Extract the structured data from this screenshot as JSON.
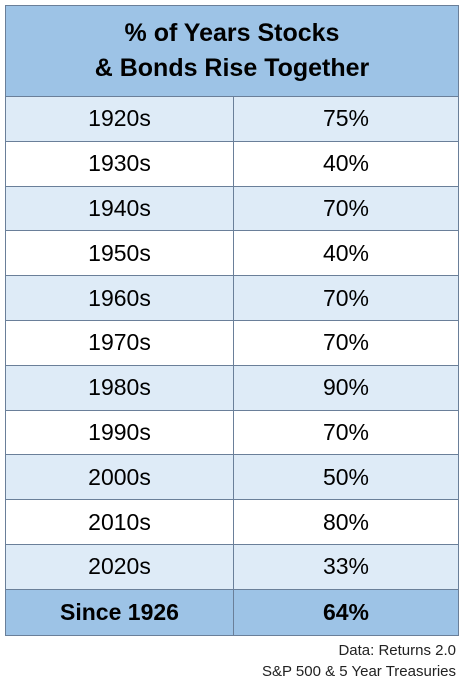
{
  "chart_data": {
    "type": "table",
    "title_lines": [
      "% of Years Stocks",
      "& Bonds Rise Together"
    ],
    "rows": [
      {
        "decade": "1920s",
        "value": "75%"
      },
      {
        "decade": "1930s",
        "value": "40%"
      },
      {
        "decade": "1940s",
        "value": "70%"
      },
      {
        "decade": "1950s",
        "value": "40%"
      },
      {
        "decade": "1960s",
        "value": "70%"
      },
      {
        "decade": "1970s",
        "value": "70%"
      },
      {
        "decade": "1980s",
        "value": "90%"
      },
      {
        "decade": "1990s",
        "value": "70%"
      },
      {
        "decade": "2000s",
        "value": "50%"
      },
      {
        "decade": "2010s",
        "value": "80%"
      },
      {
        "decade": "2020s",
        "value": "33%"
      }
    ],
    "total": {
      "label": "Since 1926",
      "value": "64%"
    },
    "source_lines": [
      "Data: Returns 2.0",
      "S&P 500 & 5 Year Treasuries"
    ]
  }
}
